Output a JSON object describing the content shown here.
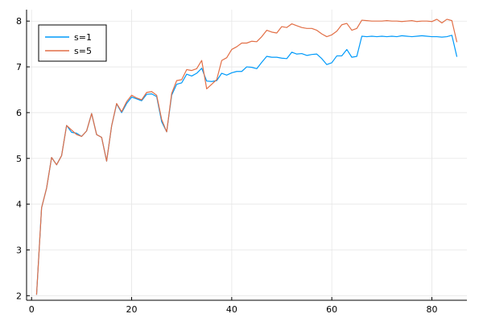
{
  "chart_data": {
    "type": "line",
    "grid": true,
    "legend_position": "top-left",
    "xlim": [
      -1,
      87
    ],
    "ylim": [
      1.9,
      8.25
    ],
    "xticks": [
      0,
      20,
      40,
      60,
      80
    ],
    "yticks": [
      2,
      3,
      4,
      5,
      6,
      7,
      8
    ],
    "x": [
      1,
      2,
      3,
      4,
      5,
      6,
      7,
      8,
      9,
      10,
      11,
      12,
      13,
      14,
      15,
      16,
      17,
      18,
      19,
      20,
      21,
      22,
      23,
      24,
      25,
      26,
      27,
      28,
      29,
      30,
      31,
      32,
      33,
      34,
      35,
      36,
      37,
      38,
      39,
      40,
      41,
      42,
      43,
      44,
      45,
      46,
      47,
      48,
      49,
      50,
      51,
      52,
      53,
      54,
      55,
      56,
      57,
      58,
      59,
      60,
      61,
      62,
      63,
      64,
      65,
      66,
      67,
      68,
      69,
      70,
      71,
      72,
      73,
      74,
      75,
      76,
      77,
      78,
      79,
      80,
      81,
      82,
      83,
      84,
      85
    ],
    "series": [
      {
        "name": "s=1",
        "color": "#009AFA",
        "values": [
          2.02,
          3.92,
          4.35,
          5.02,
          4.86,
          5.06,
          5.72,
          5.57,
          5.55,
          5.48,
          5.6,
          5.98,
          5.52,
          5.46,
          4.94,
          5.71,
          6.19,
          6.0,
          6.2,
          6.34,
          6.3,
          6.26,
          6.4,
          6.41,
          6.35,
          5.8,
          5.58,
          6.38,
          6.62,
          6.65,
          6.84,
          6.8,
          6.86,
          6.97,
          6.69,
          6.68,
          6.7,
          6.86,
          6.82,
          6.87,
          6.9,
          6.9,
          7.0,
          6.99,
          6.96,
          7.1,
          7.23,
          7.21,
          7.21,
          7.19,
          7.18,
          7.32,
          7.28,
          7.29,
          7.25,
          7.27,
          7.28,
          7.18,
          7.05,
          7.09,
          7.24,
          7.24,
          7.38,
          7.21,
          7.23,
          7.67,
          7.66,
          7.67,
          7.66,
          7.67,
          7.66,
          7.67,
          7.66,
          7.68,
          7.67,
          7.66,
          7.67,
          7.68,
          7.67,
          7.66,
          7.66,
          7.65,
          7.66,
          7.69,
          7.22
        ]
      },
      {
        "name": "s=5",
        "color": "#E26F46",
        "values": [
          2.02,
          3.92,
          4.35,
          5.02,
          4.86,
          5.06,
          5.72,
          5.62,
          5.52,
          5.48,
          5.6,
          5.98,
          5.52,
          5.46,
          4.94,
          5.71,
          6.2,
          6.02,
          6.24,
          6.38,
          6.32,
          6.28,
          6.44,
          6.46,
          6.38,
          5.85,
          5.58,
          6.42,
          6.7,
          6.72,
          6.94,
          6.92,
          6.96,
          7.14,
          6.52,
          6.62,
          6.72,
          7.14,
          7.2,
          7.38,
          7.44,
          7.52,
          7.52,
          7.56,
          7.55,
          7.66,
          7.8,
          7.76,
          7.74,
          7.88,
          7.86,
          7.94,
          7.9,
          7.86,
          7.84,
          7.84,
          7.8,
          7.72,
          7.66,
          7.7,
          7.78,
          7.92,
          7.95,
          7.8,
          7.84,
          8.02,
          8.01,
          8.0,
          8.0,
          8.0,
          8.01,
          8.0,
          8.0,
          7.99,
          8.0,
          8.01,
          7.99,
          8.0,
          8.0,
          7.99,
          8.04,
          7.96,
          8.04,
          8.01,
          7.54
        ]
      }
    ]
  }
}
